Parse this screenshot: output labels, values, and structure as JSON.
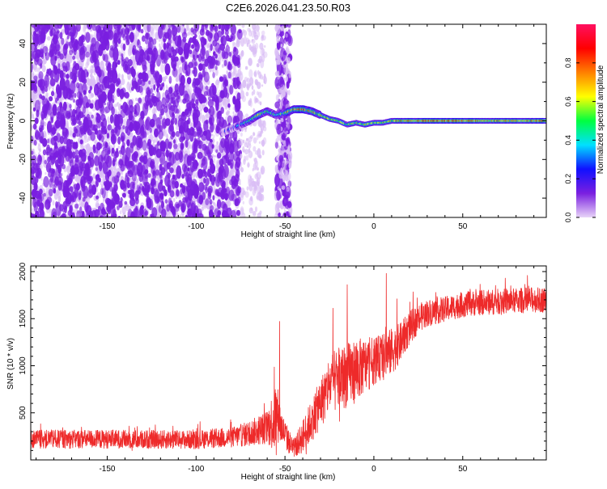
{
  "page_title": "C2E6.2026.041.23.50.R03",
  "colors": {
    "frame": "#000000",
    "snr_line": "#ee2a2a",
    "scatter_purple": "#7a1fe0",
    "scatter_light": "#d9bdf5"
  },
  "chart_data": [
    {
      "id": "spectrogram",
      "type": "heatmap",
      "title": "C2E6.2026.041.23.50.R03",
      "xlabel": "Height of straight line (km)",
      "ylabel": "Frequency (Hz)",
      "xlim": [
        -193,
        97
      ],
      "ylim": [
        -50,
        50
      ],
      "x_ticks": [
        -150,
        -100,
        -50,
        0,
        50
      ],
      "x_tick_labels": [
        "-150",
        "-100",
        "-50",
        "0",
        "50"
      ],
      "y_ticks": [
        -40,
        -20,
        0,
        20,
        40
      ],
      "y_tick_labels": [
        "-40",
        "-20",
        "0",
        "20",
        "40"
      ],
      "colorbar": {
        "label": "Normalized spectral amplitude",
        "range": [
          0.0,
          1.0
        ],
        "ticks": [
          0.0,
          0.2,
          0.4,
          0.6,
          0.8
        ],
        "tick_labels": [
          "0.0",
          "0.2",
          "0.4",
          "0.6",
          "0.8"
        ],
        "stops": [
          "#e8d4f8",
          "#7a1fe0",
          "#1010ff",
          "#00e0ff",
          "#00ff40",
          "#ffff00",
          "#ff8000",
          "#ff0000",
          "#ff1060"
        ]
      },
      "regions": [
        {
          "name": "noise",
          "x_range": [
            -193,
            -75
          ]
        },
        {
          "name": "noise-stripe",
          "x_range": [
            -55,
            -47
          ]
        },
        {
          "name": "signal-trace",
          "x_range": [
            -75,
            97
          ]
        }
      ],
      "trace": {
        "x": [
          -85,
          -75,
          -70,
          -65,
          -60,
          -55,
          -50,
          -45,
          -40,
          -35,
          -30,
          -25,
          -20,
          -15,
          -10,
          -5,
          0,
          5,
          10,
          20,
          30,
          50,
          70,
          97
        ],
        "freq": [
          -6,
          -2,
          0,
          3,
          5,
          3,
          4,
          6,
          6,
          5,
          3,
          1,
          0,
          -2,
          -1,
          -2,
          -1,
          -1,
          0,
          0,
          0,
          0,
          0,
          0
        ],
        "amplitude": [
          0.1,
          0.3,
          0.45,
          0.6,
          0.55,
          0.35,
          0.55,
          0.7,
          0.75,
          0.6,
          0.65,
          0.6,
          0.55,
          0.6,
          0.55,
          0.6,
          0.6,
          0.6,
          0.65,
          0.7,
          0.75,
          0.75,
          0.7,
          0.7
        ]
      }
    },
    {
      "id": "snr",
      "type": "line",
      "xlabel": "Height of straight line (km)",
      "ylabel": "SNR (10 * v/v)",
      "xlim": [
        -193,
        97
      ],
      "ylim": [
        0,
        2060
      ],
      "x_ticks": [
        -150,
        -100,
        -50,
        0,
        50
      ],
      "x_tick_labels": [
        "-150",
        "-100",
        "-50",
        "0",
        "50"
      ],
      "y_ticks": [
        500,
        1000,
        1500,
        2000
      ],
      "y_tick_labels": [
        "500",
        "1000",
        "1500",
        "2000"
      ],
      "envelope": {
        "x": [
          -193,
          -150,
          -100,
          -80,
          -70,
          -60,
          -55,
          -52,
          -48,
          -45,
          -40,
          -35,
          -30,
          -25,
          -20,
          -15,
          -10,
          -5,
          0,
          5,
          10,
          15,
          20,
          25,
          30,
          40,
          50,
          60,
          70,
          80,
          90,
          97
        ],
        "mean": [
          220,
          220,
          215,
          240,
          280,
          350,
          450,
          350,
          200,
          120,
          250,
          420,
          600,
          800,
          850,
          900,
          950,
          1000,
          1050,
          1100,
          1150,
          1250,
          1400,
          1500,
          1560,
          1600,
          1650,
          1670,
          1680,
          1690,
          1700,
          1700
        ],
        "spread": [
          110,
          110,
          110,
          120,
          150,
          200,
          450,
          200,
          150,
          100,
          200,
          250,
          300,
          350,
          380,
          380,
          380,
          320,
          280,
          260,
          280,
          230,
          200,
          170,
          160,
          150,
          150,
          150,
          150,
          150,
          150,
          150
        ]
      },
      "spikes": [
        {
          "x": -53,
          "y": 1470
        },
        {
          "x": -23,
          "y": 1610
        },
        {
          "x": -15,
          "y": 1860
        },
        {
          "x": 7,
          "y": 1980
        },
        {
          "x": 13,
          "y": 1710
        }
      ]
    }
  ]
}
